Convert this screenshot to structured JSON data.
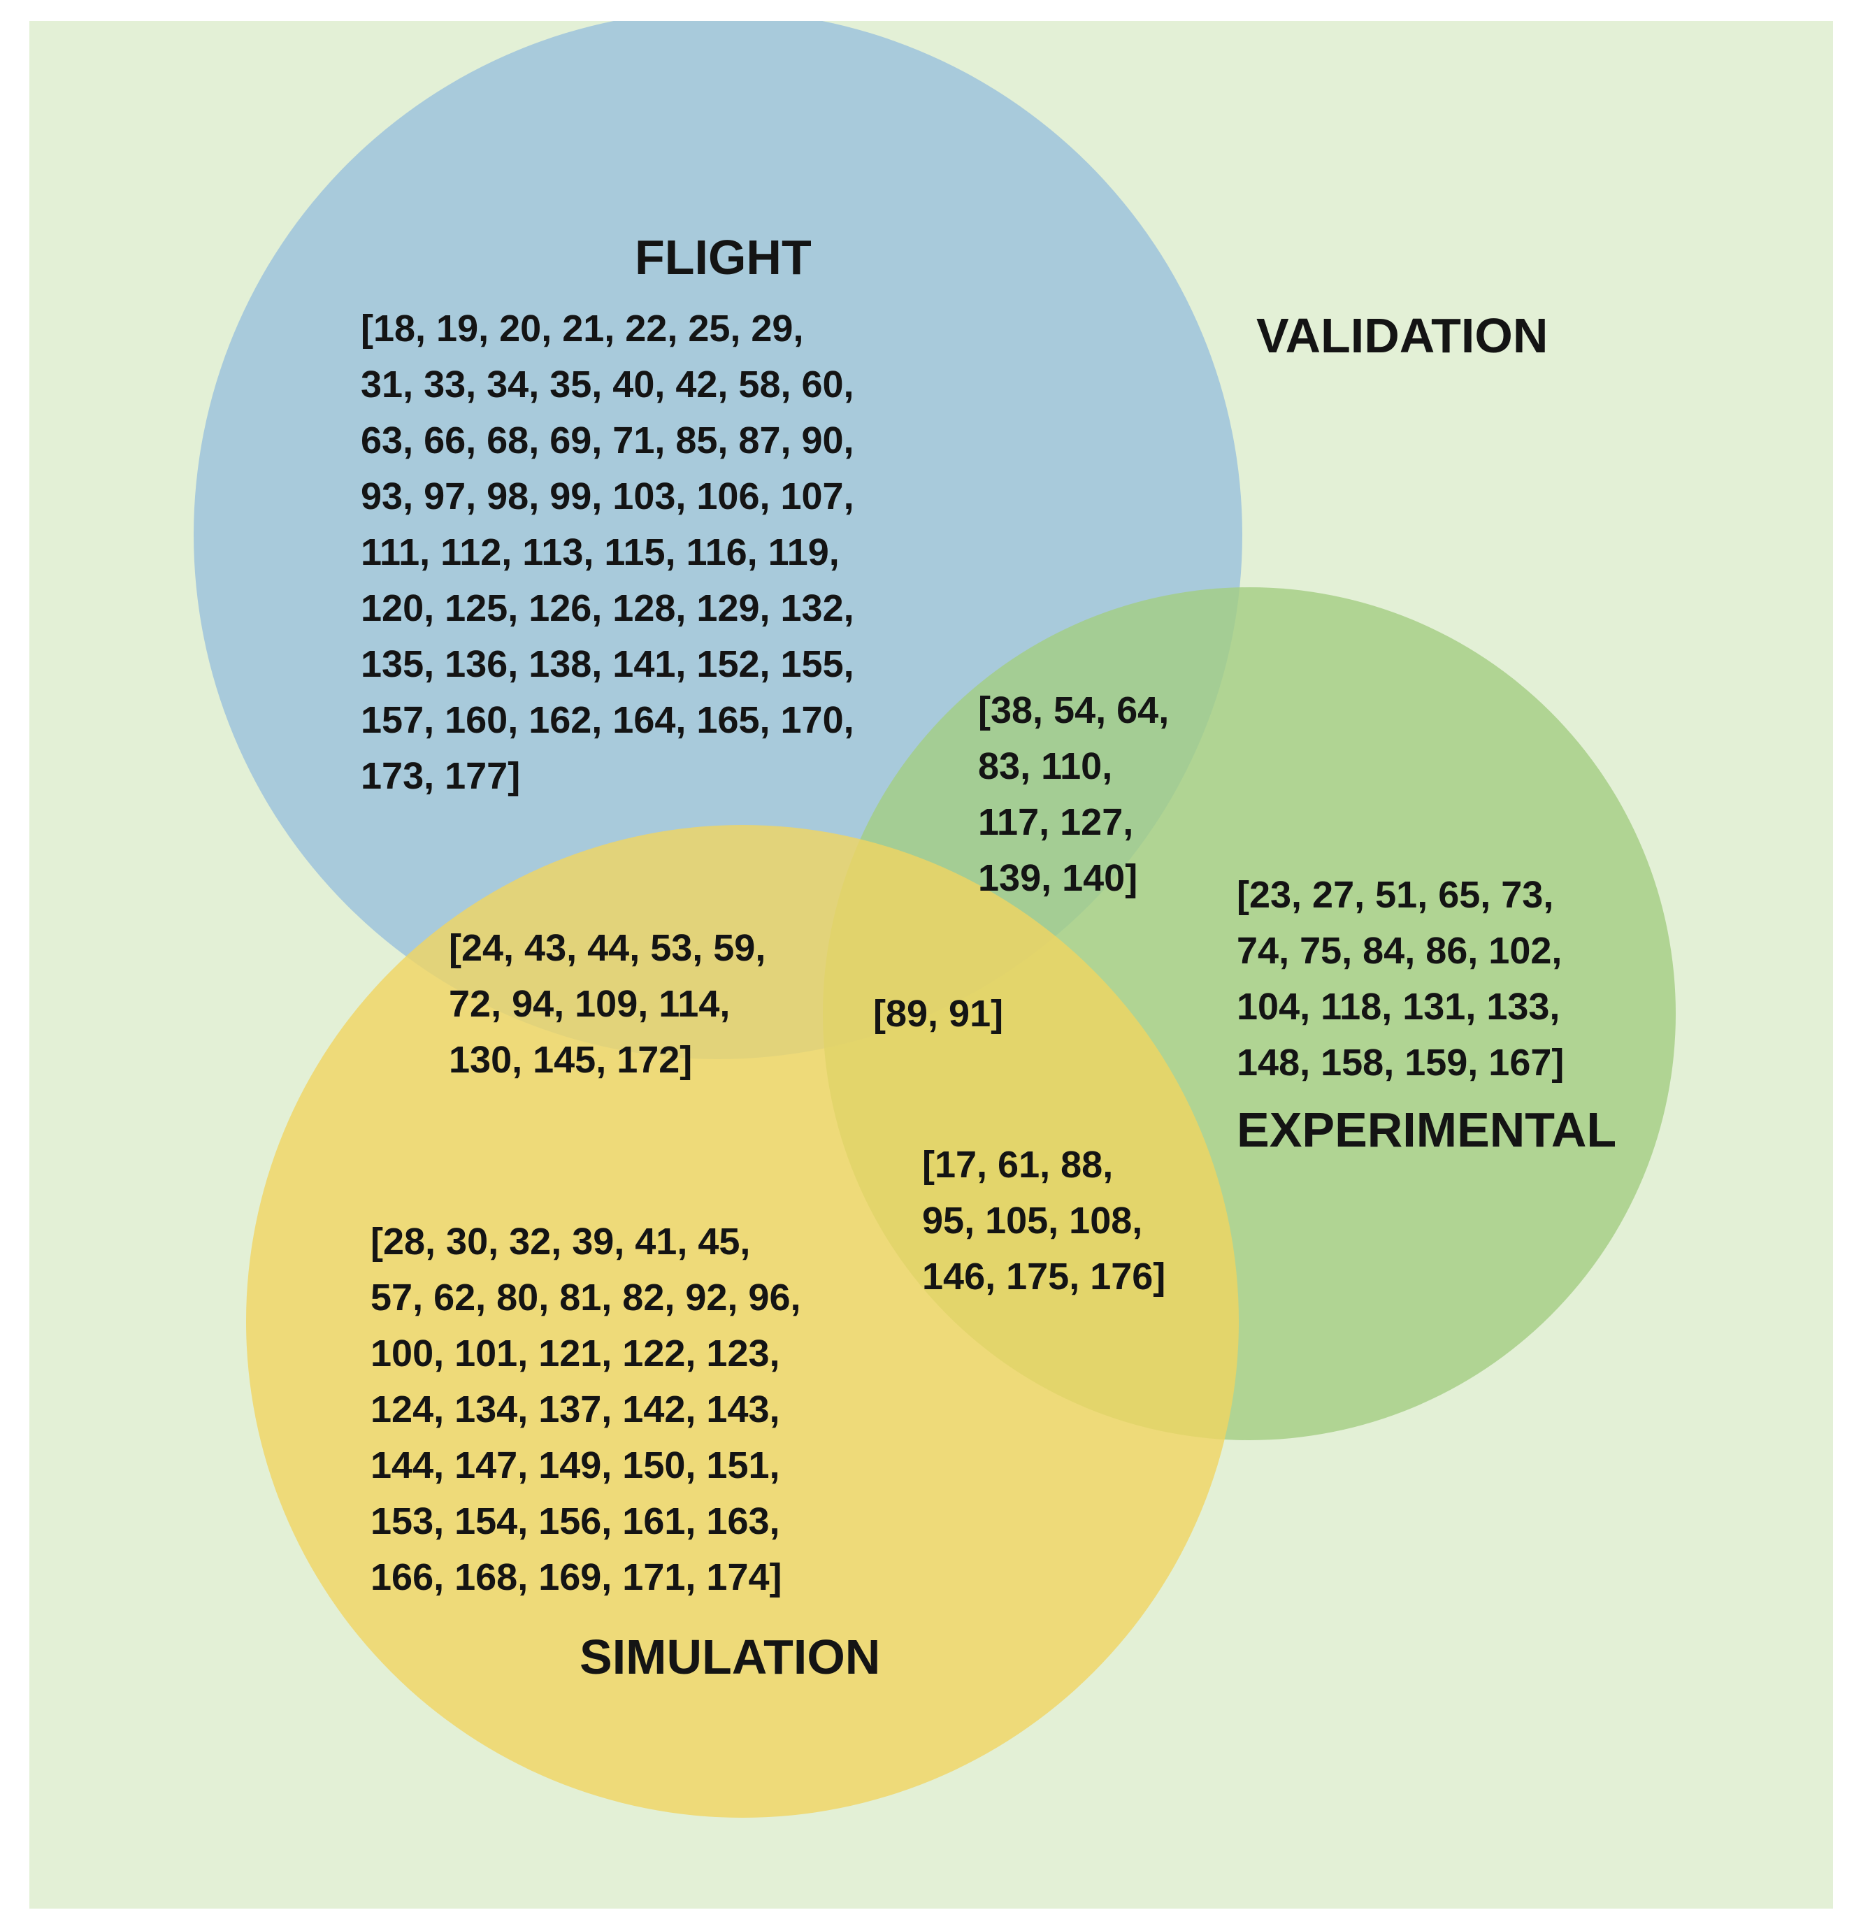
{
  "diagram": {
    "title": "VALIDATION",
    "sets": [
      {
        "id": "flight",
        "label": "FLIGHT",
        "color": "#99c1dc"
      },
      {
        "id": "experimental",
        "label": "EXPERIMENTAL",
        "color": "#a3cd82"
      },
      {
        "id": "simulation",
        "label": "SIMULATION",
        "color": "#f0d462"
      }
    ],
    "regions": {
      "flight_only": "[18, 19, 20, 21, 22, 25, 29,\n31, 33, 34, 35, 40, 42, 58, 60,\n63, 66, 68, 69, 71, 85, 87, 90,\n93, 97, 98, 99, 103, 106, 107,\n111, 112, 113, 115, 116, 119,\n120, 125, 126, 128, 129, 132,\n135, 136, 138, 141, 152, 155,\n157, 160, 162, 164, 165, 170,\n173, 177]",
      "flight_experimental": "[38, 54, 64,\n83, 110,\n117, 127,\n139, 140]",
      "experimental_only": "[23, 27, 51, 65, 73,\n74, 75, 84, 86, 102,\n104, 118, 131, 133,\n148, 158, 159, 167]",
      "flight_simulation": "[24, 43, 44, 53, 59,\n72, 94, 109, 114,\n130, 145, 172]",
      "all_three": "[89, 91]",
      "simulation_experimental": "[17, 61, 88,\n95, 105, 108,\n146, 175, 176]",
      "simulation_only": "[28, 30, 32, 39, 41, 45,\n57, 62, 80, 81, 82, 92, 96,\n100, 101, 121, 122, 123,\n124, 134, 137, 142, 143,\n144, 147, 149, 150, 151,\n153, 154, 156, 161, 163,\n166, 168, 169, 171, 174]"
    }
  }
}
